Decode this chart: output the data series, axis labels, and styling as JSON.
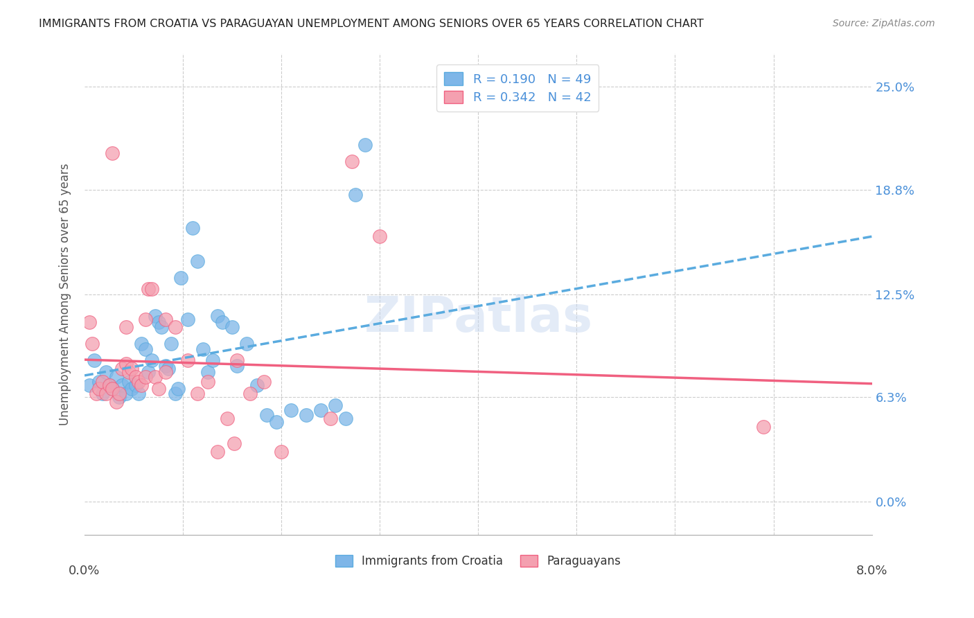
{
  "title": "IMMIGRANTS FROM CROATIA VS PARAGUAYAN UNEMPLOYMENT AMONG SENIORS OVER 65 YEARS CORRELATION CHART",
  "source": "Source: ZipAtlas.com",
  "ylabel": "Unemployment Among Seniors over 65 years",
  "ytick_labels": [
    "0.0%",
    "6.3%",
    "12.5%",
    "18.8%",
    "25.0%"
  ],
  "ytick_values": [
    0.0,
    6.3,
    12.5,
    18.8,
    25.0
  ],
  "xlim": [
    0.0,
    8.0
  ],
  "ylim": [
    -2.0,
    27.0
  ],
  "color_blue": "#7EB6E8",
  "color_pink": "#F4A0B0",
  "color_blue_line": "#5AABDF",
  "color_pink_line": "#F06080",
  "color_blue_text": "#4A90D9",
  "watermark": "ZIPatlas",
  "blue_scatter_x": [
    0.05,
    0.1,
    0.15,
    0.18,
    0.22,
    0.25,
    0.28,
    0.32,
    0.35,
    0.38,
    0.42,
    0.45,
    0.48,
    0.52,
    0.55,
    0.58,
    0.62,
    0.65,
    0.68,
    0.72,
    0.75,
    0.78,
    0.82,
    0.85,
    0.88,
    0.92,
    0.95,
    0.98,
    1.05,
    1.1,
    1.15,
    1.2,
    1.25,
    1.3,
    1.35,
    1.4,
    1.5,
    1.55,
    1.65,
    1.75,
    1.85,
    1.95,
    2.1,
    2.25,
    2.4,
    2.55,
    2.65,
    2.75,
    2.85
  ],
  "blue_scatter_y": [
    7.0,
    8.5,
    7.2,
    6.5,
    7.8,
    7.0,
    6.8,
    7.5,
    6.3,
    7.0,
    6.5,
    7.2,
    6.8,
    7.0,
    6.5,
    9.5,
    9.2,
    7.8,
    8.5,
    11.2,
    10.8,
    10.5,
    8.2,
    8.0,
    9.5,
    6.5,
    6.8,
    13.5,
    11.0,
    16.5,
    14.5,
    9.2,
    7.8,
    8.5,
    11.2,
    10.8,
    10.5,
    8.2,
    9.5,
    7.0,
    5.2,
    4.8,
    5.5,
    5.2,
    5.5,
    5.8,
    5.0,
    18.5,
    21.5
  ],
  "pink_scatter_x": [
    0.05,
    0.08,
    0.12,
    0.15,
    0.18,
    0.22,
    0.25,
    0.28,
    0.32,
    0.35,
    0.38,
    0.42,
    0.45,
    0.48,
    0.52,
    0.55,
    0.58,
    0.62,
    0.65,
    0.68,
    0.72,
    0.75,
    0.82,
    0.92,
    1.05,
    1.15,
    1.25,
    1.35,
    1.45,
    1.55,
    1.68,
    1.82,
    2.0,
    2.5,
    2.72,
    3.0,
    6.9,
    0.28,
    0.42,
    0.62,
    0.82,
    1.52
  ],
  "pink_scatter_y": [
    10.8,
    9.5,
    6.5,
    6.8,
    7.2,
    6.5,
    7.0,
    6.8,
    6.0,
    6.5,
    8.0,
    8.3,
    7.8,
    8.0,
    7.5,
    7.2,
    7.0,
    7.5,
    12.8,
    12.8,
    7.5,
    6.8,
    11.0,
    10.5,
    8.5,
    6.5,
    7.2,
    3.0,
    5.0,
    8.5,
    6.5,
    7.2,
    3.0,
    5.0,
    20.5,
    16.0,
    4.5,
    21.0,
    10.5,
    11.0,
    7.8,
    3.5
  ]
}
